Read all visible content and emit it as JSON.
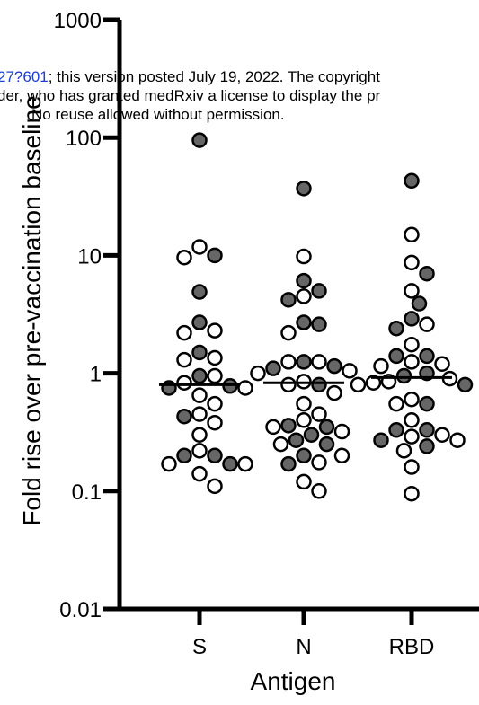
{
  "watermark": {
    "line1_link": "27?601",
    "line1_rest": "; this version posted July 19, 2022. The copyright",
    "line2": "der, who has granted medRxiv a license to display the pr",
    "line3": "No reuse allowed without permission."
  },
  "colors": {
    "filled": "#666666",
    "stroke": "#000000",
    "open": "#ffffff",
    "axis": "#000000"
  },
  "chart_data": {
    "type": "scatter",
    "subtype": "dot-plot-with-median",
    "xlabel": "Antigen",
    "ylabel": "Fold rise over pre-vaccination baseline",
    "yscale": "log",
    "ylim": [
      0.01,
      1000
    ],
    "yticks": [
      0.01,
      0.1,
      1,
      10,
      100,
      1000
    ],
    "ytick_labels": [
      "0.01",
      "0.1",
      "1",
      "10",
      "100",
      "1000"
    ],
    "categories": [
      "S",
      "N",
      "RBD"
    ],
    "grid": false,
    "legend": "none",
    "groups": [
      {
        "category": "S",
        "median": 0.8,
        "filled": [
          95,
          10,
          4.9,
          2.7,
          1.5,
          0.95,
          0.78,
          0.75,
          0.43,
          0.2,
          0.17,
          0.2
        ],
        "open": [
          11.8,
          9.6,
          2.2,
          2.3,
          1.35,
          1.3,
          0.95,
          0.83,
          0.75,
          0.65,
          0.55,
          0.45,
          0.38,
          0.3,
          0.22,
          0.17,
          0.17,
          0.14,
          0.11
        ]
      },
      {
        "category": "N",
        "median": 0.83,
        "filled": [
          37,
          6.1,
          5,
          4.2,
          2.6,
          2.7,
          1.25,
          1.15,
          1.1,
          0.8,
          0.36,
          0.35,
          0.3,
          0.27,
          0.25,
          0.2,
          0.17
        ],
        "open": [
          9.8,
          4.5,
          2.2,
          1.25,
          1.25,
          1.05,
          1.0,
          0.85,
          0.8,
          0.68,
          0.55,
          0.45,
          0.4,
          0.35,
          0.32,
          0.25,
          0.2,
          0.175,
          0.12,
          0.1
        ]
      },
      {
        "category": "RBD",
        "median": 0.92,
        "filled": [
          43,
          7,
          3.9,
          2.9,
          2.4,
          1.4,
          1.4,
          1.0,
          0.95,
          0.8,
          0.55,
          0.27,
          0.33,
          0.33,
          0.24
        ],
        "open": [
          15,
          8.7,
          5,
          2.6,
          1.75,
          1.25,
          1.2,
          1.15,
          0.9,
          0.85,
          0.83,
          0.8,
          0.6,
          0.55,
          0.4,
          0.3,
          0.29,
          0.27,
          0.22,
          0.16,
          0.095
        ]
      }
    ]
  }
}
